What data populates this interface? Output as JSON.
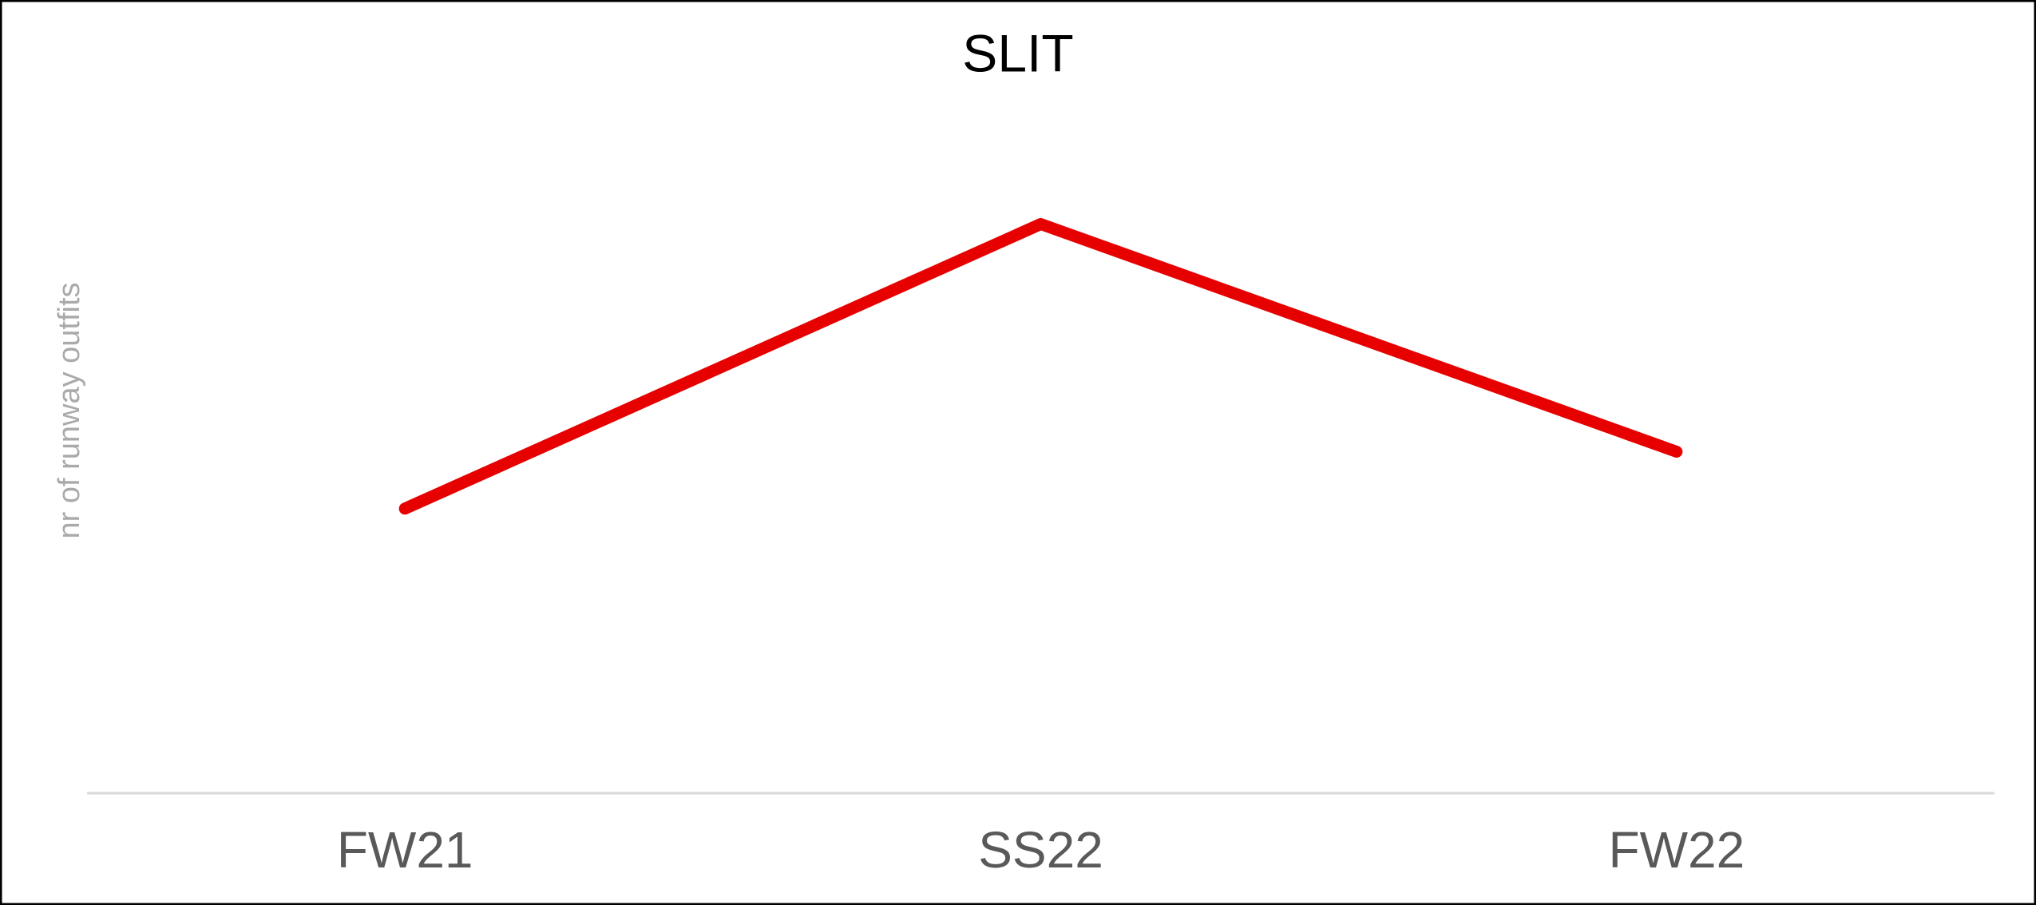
{
  "chart_data": {
    "type": "line",
    "title": "SLIT",
    "y_label": "nr of runway outfits",
    "categories": [
      "FW21",
      "SS22",
      "FW22"
    ],
    "series": [
      {
        "name": "SLIT",
        "color": "#e60000",
        "values": [
          5,
          10,
          6
        ]
      }
    ],
    "ylim": [
      0,
      12
    ],
    "grid": false
  }
}
